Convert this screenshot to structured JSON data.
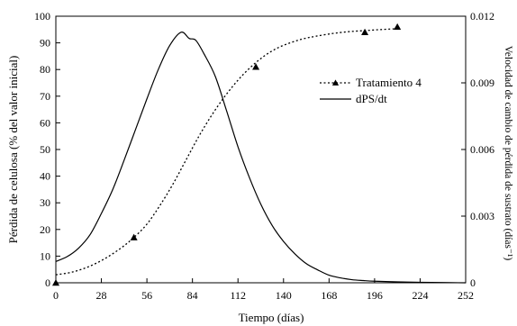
{
  "chart_data": {
    "type": "line",
    "xlabel": "Tiempo (días)",
    "ylabel": "Pérdida de celulosa (% del valor inicial)",
    "ylabel_right": "Velocidad de cambio de pérdida de sustrato (días⁻¹)",
    "xlim": [
      0,
      252
    ],
    "ylim": [
      0,
      100
    ],
    "ylim_right": [
      0,
      0.012
    ],
    "x_ticks": [
      "0",
      "28",
      "56",
      "84",
      "112",
      "140",
      "168",
      "196",
      "224",
      "252"
    ],
    "y_ticks": [
      "0",
      "10",
      "20",
      "30",
      "40",
      "50",
      "60",
      "70",
      "80",
      "90",
      "100"
    ],
    "y_right_ticks": [
      "0",
      "0.003",
      "0.006",
      "0.009",
      "0.012"
    ],
    "grid": false,
    "legend_position": "top-right",
    "series": [
      {
        "name": "Tratamiento 4",
        "axis": "left",
        "style": "dotted-with-triangle-markers",
        "curve": {
          "x": [
            0,
            10,
            20,
            30,
            40,
            48,
            56,
            64,
            72,
            80,
            88,
            96,
            104,
            112,
            120,
            128,
            136,
            144,
            152,
            160,
            170,
            180,
            190,
            200,
            210
          ],
          "y": [
            3,
            4,
            6,
            9,
            13,
            17,
            22,
            29,
            37,
            46,
            55,
            63,
            70,
            76,
            81,
            85,
            88,
            90,
            91.5,
            92.5,
            93.5,
            94.2,
            94.6,
            95,
            95.3
          ]
        },
        "markers": {
          "x": [
            0,
            48,
            123,
            190,
            210
          ],
          "y": [
            0,
            17,
            81,
            94,
            96
          ]
        }
      },
      {
        "name": "dPS/dt",
        "axis": "right",
        "style": "solid",
        "x": [
          0,
          7,
          14,
          21,
          28,
          35,
          42,
          49,
          56,
          63,
          70,
          77,
          82,
          86,
          91,
          98,
          105,
          112,
          119,
          126,
          133,
          140,
          147,
          154,
          161,
          168,
          175,
          182,
          189,
          196,
          210,
          224,
          238,
          252
        ],
        "y": [
          0.00096,
          0.00118,
          0.00156,
          0.00216,
          0.00312,
          0.0042,
          0.00552,
          0.0069,
          0.00828,
          0.0096,
          0.01068,
          0.01128,
          0.011,
          0.01092,
          0.01032,
          0.0093,
          0.00774,
          0.00612,
          0.00474,
          0.00354,
          0.00258,
          0.00186,
          0.0013,
          0.00086,
          0.00058,
          0.00034,
          0.00022,
          0.00014,
          0.0001,
          7e-05,
          4e-05,
          2e-05,
          1e-05,
          0.0
        ]
      }
    ]
  }
}
